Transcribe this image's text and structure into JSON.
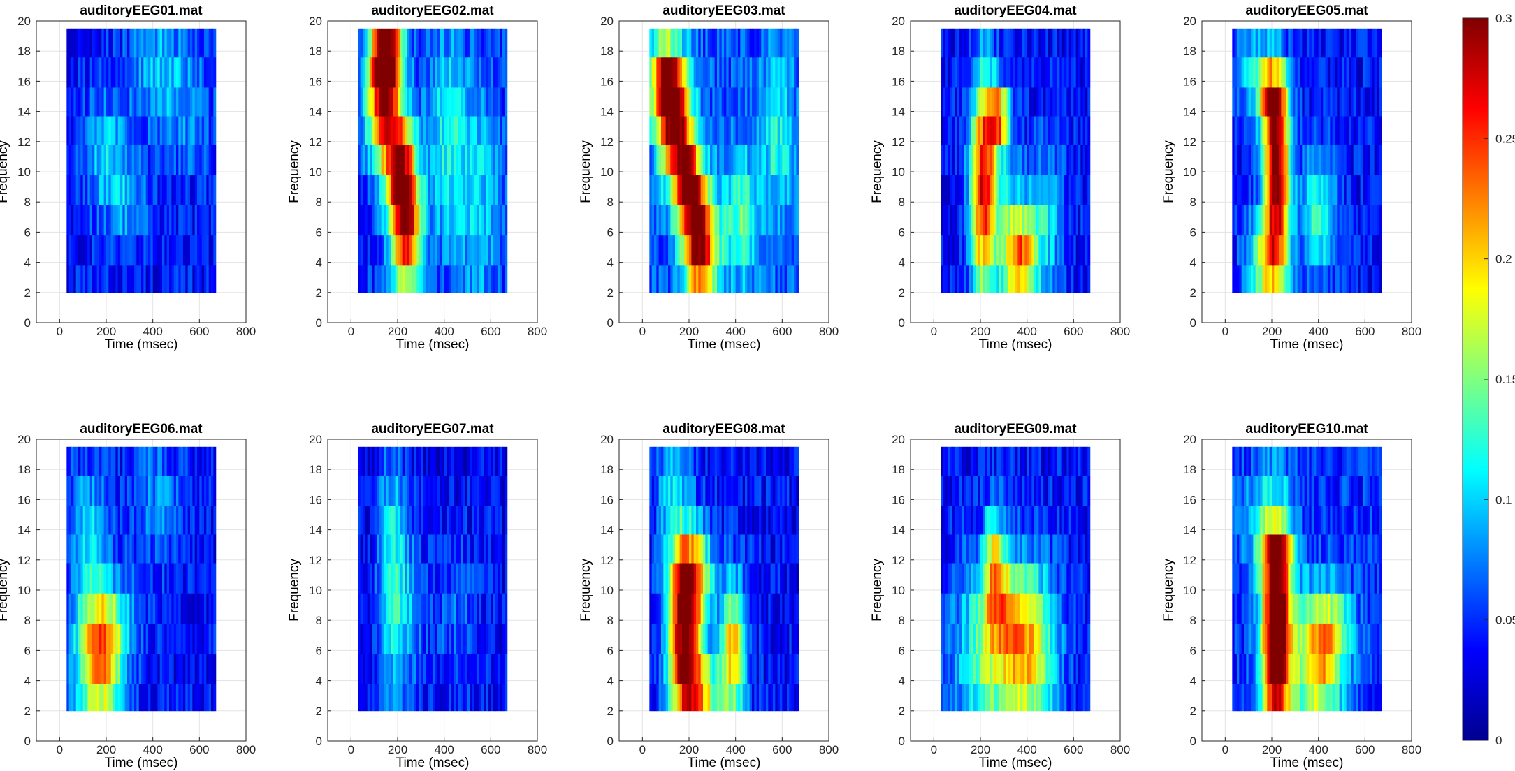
{
  "chart_data": {
    "type": "heatmap",
    "colormap": "jet",
    "colorbar": {
      "range": [
        0,
        0.3
      ],
      "ticks": [
        0,
        0.05,
        0.1,
        0.15,
        0.2,
        0.25,
        0.3
      ],
      "tick_labels": [
        "0",
        "0.05",
        "0.1",
        "0.15",
        "0.2",
        "0.25",
        "0.3"
      ]
    },
    "shared_axes": {
      "xlabel": "Time (msec)",
      "ylabel": "Frequency",
      "xlim": [
        -100,
        800
      ],
      "ylim": [
        0,
        20
      ],
      "xticks": [
        0,
        200,
        400,
        600,
        800
      ],
      "xtick_labels": [
        "0",
        "200",
        "400",
        "600",
        "800"
      ],
      "yticks": [
        0,
        2,
        4,
        6,
        8,
        10,
        12,
        14,
        16,
        18,
        20
      ],
      "ytick_labels": [
        "0",
        "2",
        "4",
        "6",
        "8",
        "10",
        "12",
        "14",
        "16",
        "18",
        "20"
      ],
      "grid": true,
      "time_range": [
        30,
        670
      ],
      "frequency_bands": [
        [
          2,
          3.8
        ],
        [
          3.8,
          5.8
        ],
        [
          5.8,
          7.8
        ],
        [
          7.8,
          9.8
        ],
        [
          9.8,
          11.8
        ],
        [
          11.8,
          13.7
        ],
        [
          13.7,
          15.6
        ],
        [
          15.6,
          17.6
        ],
        [
          17.6,
          19.5
        ]
      ]
    },
    "panels": [
      {
        "title": "auditoryEEG01.mat",
        "base": 0.04,
        "blobs": [
          {
            "t": 200,
            "f": 11,
            "amp": 0.06,
            "tw": 70,
            "fw": 3
          },
          {
            "t": 420,
            "f": 17,
            "amp": 0.05,
            "tw": 90,
            "fw": 3
          },
          {
            "t": 300,
            "f": 8,
            "amp": 0.04,
            "tw": 60,
            "fw": 2
          },
          {
            "t": 560,
            "f": 14,
            "amp": 0.03,
            "tw": 80,
            "fw": 3
          }
        ]
      },
      {
        "title": "auditoryEEG02.mat",
        "base": 0.05,
        "blobs": [
          {
            "t": 140,
            "f": 15,
            "amp": 0.24,
            "tw": 50,
            "fw": 3
          },
          {
            "t": 155,
            "f": 18,
            "amp": 0.2,
            "tw": 45,
            "fw": 1.5
          },
          {
            "t": 210,
            "f": 10,
            "amp": 0.2,
            "tw": 45,
            "fw": 2.5
          },
          {
            "t": 240,
            "f": 6,
            "amp": 0.21,
            "tw": 45,
            "fw": 3
          },
          {
            "t": 420,
            "f": 12,
            "amp": 0.07,
            "tw": 60,
            "fw": 5
          },
          {
            "t": 560,
            "f": 8,
            "amp": 0.05,
            "tw": 60,
            "fw": 5
          }
        ]
      },
      {
        "title": "auditoryEEG03.mat",
        "base": 0.06,
        "blobs": [
          {
            "t": 100,
            "f": 16,
            "amp": 0.2,
            "tw": 50,
            "fw": 2
          },
          {
            "t": 140,
            "f": 13,
            "amp": 0.22,
            "tw": 50,
            "fw": 2.5
          },
          {
            "t": 200,
            "f": 9,
            "amp": 0.22,
            "tw": 45,
            "fw": 2
          },
          {
            "t": 250,
            "f": 5,
            "amp": 0.24,
            "tw": 50,
            "fw": 2.5
          },
          {
            "t": 420,
            "f": 7,
            "amp": 0.08,
            "tw": 50,
            "fw": 3
          },
          {
            "t": 580,
            "f": 12,
            "amp": 0.06,
            "tw": 50,
            "fw": 4
          }
        ]
      },
      {
        "title": "auditoryEEG04.mat",
        "base": 0.04,
        "blobs": [
          {
            "t": 215,
            "f": 9,
            "amp": 0.24,
            "tw": 40,
            "fw": 5
          },
          {
            "t": 280,
            "f": 13.5,
            "amp": 0.18,
            "tw": 35,
            "fw": 1.5
          },
          {
            "t": 330,
            "f": 5,
            "amp": 0.12,
            "tw": 40,
            "fw": 3
          },
          {
            "t": 390,
            "f": 4,
            "amp": 0.14,
            "tw": 40,
            "fw": 2
          },
          {
            "t": 470,
            "f": 7,
            "amp": 0.08,
            "tw": 60,
            "fw": 3
          }
        ]
      },
      {
        "title": "auditoryEEG05.mat",
        "base": 0.04,
        "blobs": [
          {
            "t": 220,
            "f": 10,
            "amp": 0.28,
            "tw": 40,
            "fw": 4
          },
          {
            "t": 200,
            "f": 15,
            "amp": 0.18,
            "tw": 40,
            "fw": 1.5
          },
          {
            "t": 180,
            "f": 4,
            "amp": 0.14,
            "tw": 60,
            "fw": 2
          },
          {
            "t": 400,
            "f": 7,
            "amp": 0.09,
            "tw": 50,
            "fw": 3
          },
          {
            "t": 110,
            "f": 17,
            "amp": 0.07,
            "tw": 50,
            "fw": 2
          }
        ]
      },
      {
        "title": "auditoryEEG06.mat",
        "base": 0.04,
        "blobs": [
          {
            "t": 170,
            "f": 5,
            "amp": 0.17,
            "tw": 70,
            "fw": 3
          },
          {
            "t": 200,
            "f": 8,
            "amp": 0.08,
            "tw": 80,
            "fw": 2
          },
          {
            "t": 120,
            "f": 14,
            "amp": 0.06,
            "tw": 60,
            "fw": 3
          },
          {
            "t": 420,
            "f": 16,
            "amp": 0.04,
            "tw": 70,
            "fw": 3
          }
        ]
      },
      {
        "title": "auditoryEEG07.mat",
        "base": 0.035,
        "blobs": [
          {
            "t": 170,
            "f": 11,
            "amp": 0.08,
            "tw": 40,
            "fw": 6
          },
          {
            "t": 240,
            "f": 9,
            "amp": 0.05,
            "tw": 50,
            "fw": 4
          },
          {
            "t": 450,
            "f": 8,
            "amp": 0.03,
            "tw": 80,
            "fw": 4
          }
        ]
      },
      {
        "title": "auditoryEEG08.mat",
        "base": 0.04,
        "blobs": [
          {
            "t": 180,
            "f": 7,
            "amp": 0.26,
            "tw": 50,
            "fw": 4
          },
          {
            "t": 220,
            "f": 11,
            "amp": 0.14,
            "tw": 60,
            "fw": 2
          },
          {
            "t": 390,
            "f": 6,
            "amp": 0.17,
            "tw": 40,
            "fw": 3
          },
          {
            "t": 250,
            "f": 3,
            "amp": 0.14,
            "tw": 60,
            "fw": 2
          },
          {
            "t": 130,
            "f": 17,
            "amp": 0.06,
            "tw": 50,
            "fw": 3
          }
        ]
      },
      {
        "title": "auditoryEEG09.mat",
        "base": 0.04,
        "blobs": [
          {
            "t": 270,
            "f": 6,
            "amp": 0.12,
            "tw": 120,
            "fw": 4
          },
          {
            "t": 420,
            "f": 6,
            "amp": 0.11,
            "tw": 80,
            "fw": 4
          },
          {
            "t": 260,
            "f": 12,
            "amp": 0.12,
            "tw": 30,
            "fw": 2.5
          },
          {
            "t": 300,
            "f": 9,
            "amp": 0.06,
            "tw": 60,
            "fw": 2
          }
        ]
      },
      {
        "title": "auditoryEEG10.mat",
        "base": 0.05,
        "blobs": [
          {
            "t": 220,
            "f": 7,
            "amp": 0.32,
            "tw": 45,
            "fw": 5
          },
          {
            "t": 220,
            "f": 12.5,
            "amp": 0.12,
            "tw": 50,
            "fw": 1.2
          },
          {
            "t": 400,
            "f": 5,
            "amp": 0.15,
            "tw": 70,
            "fw": 3
          },
          {
            "t": 450,
            "f": 7.5,
            "amp": 0.08,
            "tw": 70,
            "fw": 2
          },
          {
            "t": 140,
            "f": 15,
            "amp": 0.05,
            "tw": 60,
            "fw": 2
          }
        ]
      }
    ]
  }
}
